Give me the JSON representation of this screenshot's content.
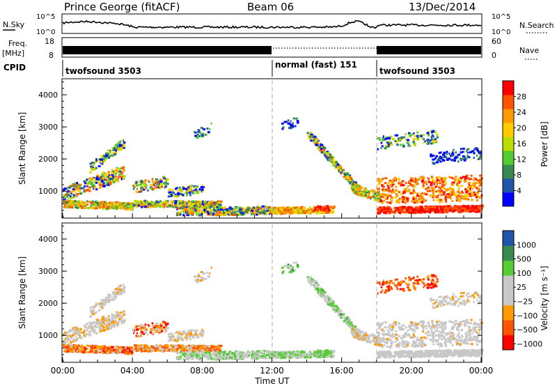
{
  "header": {
    "station": "Prince George (fitACF)",
    "beam": "Beam 06",
    "date": "13/Dec/2014"
  },
  "strip_labels": {
    "nsky": "N.Sky",
    "nsearch": "N.Search",
    "freq": "Freq.",
    "freq_unit": "[MHz]",
    "nave": "Nave",
    "cpid": "CPID",
    "nsky_ticks": [
      "10^5",
      "10^0"
    ],
    "nsearch_ticks": [
      "10^5",
      "10^0"
    ],
    "freq_ticks": [
      "18",
      "8"
    ],
    "nave_ticks": [
      "60",
      "0"
    ]
  },
  "cpid_segments": [
    {
      "label": "twofsound 3503",
      "start_h": 0,
      "end_h": 12
    },
    {
      "label": "normal (fast) 151",
      "start_h": 12,
      "end_h": 18
    },
    {
      "label": "twofsound 3503",
      "start_h": 18,
      "end_h": 24
    }
  ],
  "colors": {
    "power": [
      "#0000ff",
      "#2255aa",
      "#3a8a50",
      "#55cc33",
      "#bbdd00",
      "#ffcc00",
      "#ff9900",
      "#ff5500",
      "#ff0000"
    ],
    "velocity": [
      "#ff0000",
      "#ff5500",
      "#ff9900",
      "#c8c8c8",
      "#c8c8c8",
      "#55cc33",
      "#3a8a50",
      "#2255aa"
    ]
  },
  "chart_data": [
    {
      "type": "heatmap",
      "name": "power",
      "ylabel": "Slant Range [km]",
      "xlabel": "",
      "xlim_h": [
        0,
        24
      ],
      "ylim": [
        180,
        4500
      ],
      "yticks": [
        1000,
        2000,
        3000,
        4000
      ],
      "colorbar": {
        "label": "Power [dB]",
        "ticks": [
          "4",
          "8",
          "12",
          "16",
          "20",
          "24",
          "28"
        ]
      }
    },
    {
      "type": "heatmap",
      "name": "velocity",
      "ylabel": "Slant Range [km]",
      "xlabel": "Time UT",
      "xlim_h": [
        0,
        24
      ],
      "xticks": [
        "00:00",
        "04:00",
        "08:00",
        "12:00",
        "16:00",
        "20:00",
        "00:00"
      ],
      "ylim": [
        180,
        4500
      ],
      "yticks": [
        1000,
        2000,
        3000,
        4000
      ],
      "colorbar": {
        "label": "Velocity [m s⁻¹]",
        "ticks": [
          "1000",
          "500",
          "100",
          "25",
          "−25",
          "−100",
          "−500",
          "−1000"
        ]
      }
    }
  ]
}
